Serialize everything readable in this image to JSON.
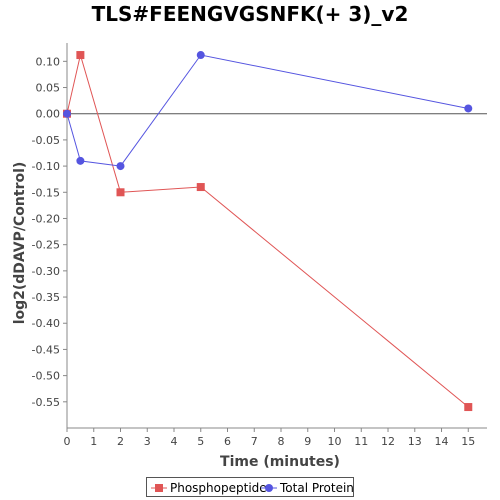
{
  "chart_data": {
    "type": "line",
    "title": "TLS#FEENGVGSNFK(+ 3)_v2",
    "xlabel": "Time (minutes)",
    "ylabel": "log2(dDAVP/Control)",
    "xlim": [
      0,
      15.7
    ],
    "ylim": [
      -0.6,
      0.135
    ],
    "x_ticks": [
      0,
      1,
      2,
      3,
      4,
      5,
      6,
      7,
      8,
      9,
      10,
      11,
      12,
      13,
      14,
      15
    ],
    "y_ticks": [
      0.1,
      0.05,
      0.0,
      -0.05,
      -0.1,
      -0.15,
      -0.2,
      -0.25,
      -0.3,
      -0.35,
      -0.4,
      -0.45,
      -0.5,
      -0.55
    ],
    "y_tick_labels": [
      "0.10",
      "0.05",
      "0.00",
      "-0.05",
      "-0.10",
      "-0.15",
      "-0.20",
      "-0.25",
      "-0.30",
      "-0.35",
      "-0.40",
      "-0.45",
      "-0.50",
      "-0.55"
    ],
    "grid": false,
    "zero_line": true,
    "legend_position": "bottom",
    "series": [
      {
        "name": "Phosphopeptide",
        "color": "#e05555",
        "marker": "square",
        "x": [
          0,
          0.5,
          2,
          5,
          15
        ],
        "y": [
          0.0,
          0.112,
          -0.15,
          -0.14,
          -0.56
        ]
      },
      {
        "name": "Total Protein",
        "color": "#5555e0",
        "marker": "circle",
        "x": [
          0,
          0.5,
          2,
          5,
          15
        ],
        "y": [
          0.0,
          -0.09,
          -0.1,
          0.112,
          0.01
        ]
      }
    ]
  }
}
